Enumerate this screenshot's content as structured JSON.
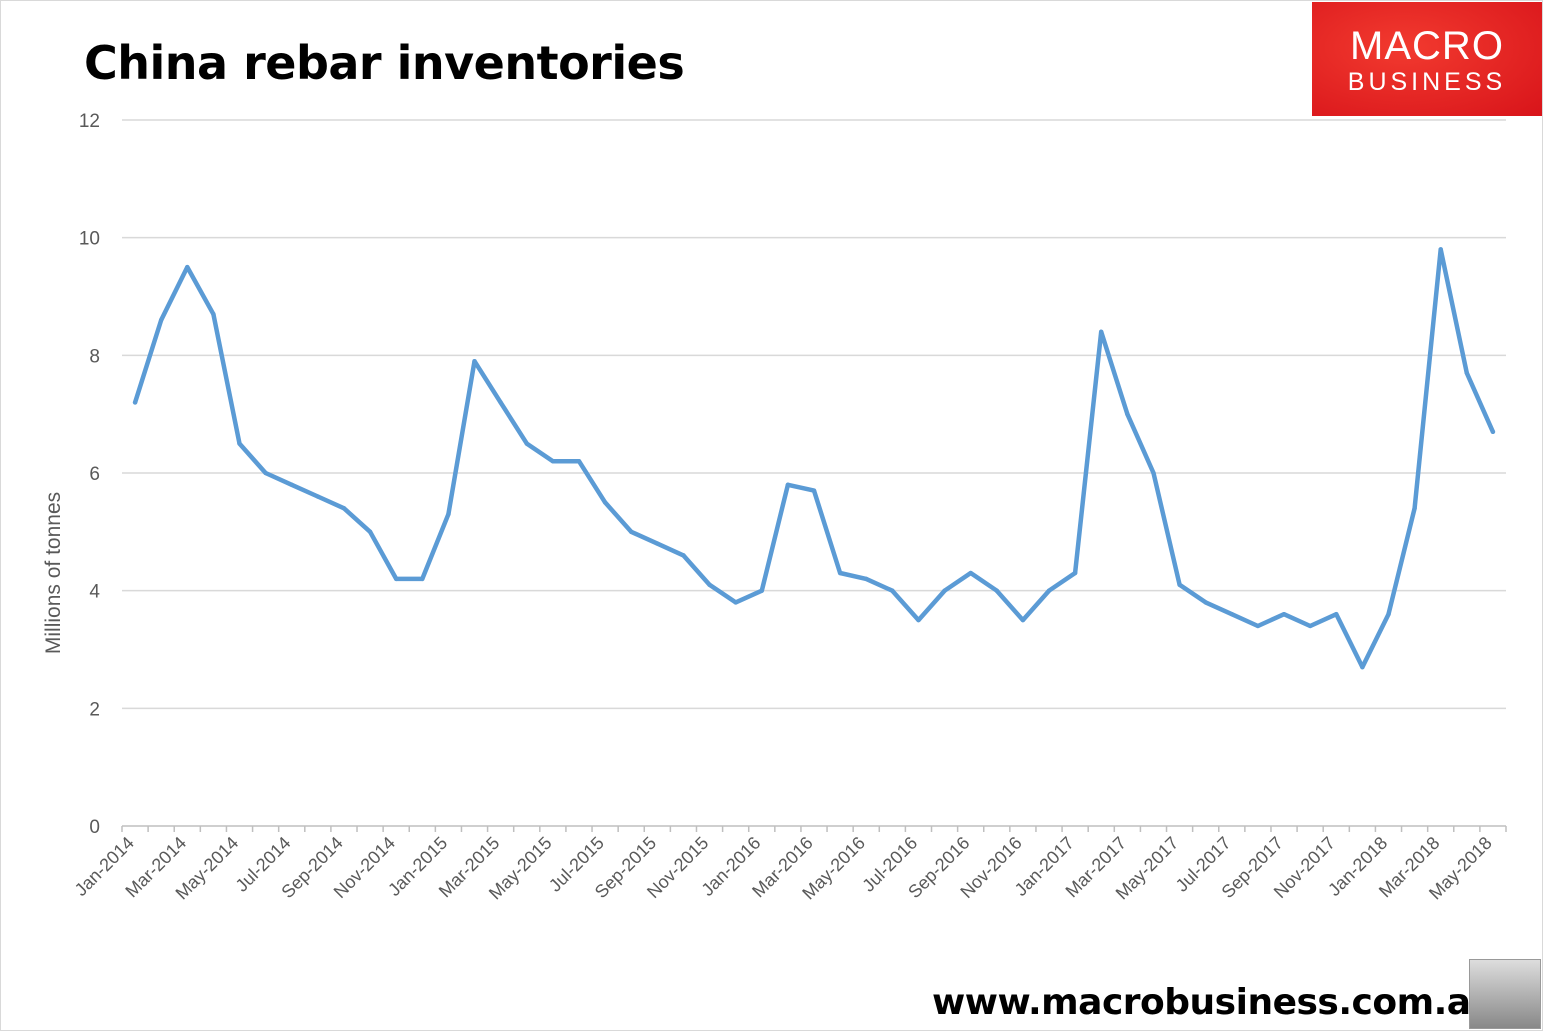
{
  "chart_data": {
    "type": "line",
    "title": "China rebar inventories",
    "xlabel": "",
    "ylabel": "Millions of tonnes",
    "ylim": [
      0,
      12
    ],
    "yticks": [
      0,
      2,
      4,
      6,
      8,
      10,
      12
    ],
    "grid": true,
    "legend": "none",
    "line_color": "#5B9BD5",
    "x": [
      "Jan-2014",
      "Feb-2014",
      "Mar-2014",
      "Apr-2014",
      "May-2014",
      "Jun-2014",
      "Jul-2014",
      "Aug-2014",
      "Sep-2014",
      "Oct-2014",
      "Nov-2014",
      "Dec-2014",
      "Jan-2015",
      "Feb-2015",
      "Mar-2015",
      "Apr-2015",
      "May-2015",
      "Jun-2015",
      "Jul-2015",
      "Aug-2015",
      "Sep-2015",
      "Oct-2015",
      "Nov-2015",
      "Dec-2015",
      "Jan-2016",
      "Feb-2016",
      "Mar-2016",
      "Apr-2016",
      "May-2016",
      "Jun-2016",
      "Jul-2016",
      "Aug-2016",
      "Sep-2016",
      "Oct-2016",
      "Nov-2016",
      "Dec-2016",
      "Jan-2017",
      "Feb-2017",
      "Mar-2017",
      "Apr-2017",
      "May-2017",
      "Jun-2017",
      "Jul-2017",
      "Aug-2017",
      "Sep-2017",
      "Oct-2017",
      "Nov-2017",
      "Dec-2017",
      "Jan-2018",
      "Feb-2018",
      "Mar-2018",
      "Apr-2018",
      "May-2018"
    ],
    "values": [
      7.2,
      8.6,
      9.5,
      8.7,
      6.5,
      6.0,
      5.8,
      5.6,
      5.4,
      5.0,
      4.2,
      4.2,
      5.3,
      7.9,
      7.2,
      6.5,
      6.2,
      6.2,
      5.5,
      5.0,
      4.8,
      4.6,
      4.1,
      3.8,
      4.0,
      5.8,
      5.7,
      4.3,
      4.2,
      4.0,
      3.5,
      4.0,
      4.3,
      4.0,
      3.5,
      4.0,
      4.3,
      8.4,
      7.0,
      6.0,
      4.1,
      3.8,
      3.6,
      3.4,
      3.6,
      3.4,
      3.6,
      2.7,
      3.6,
      5.4,
      9.8,
      7.7,
      6.7
    ]
  },
  "logo": {
    "line1": "MACRO",
    "line2": "BUSINESS",
    "color": "#E2231A"
  },
  "footer": {
    "url": "www.macrobusiness.com.au"
  }
}
